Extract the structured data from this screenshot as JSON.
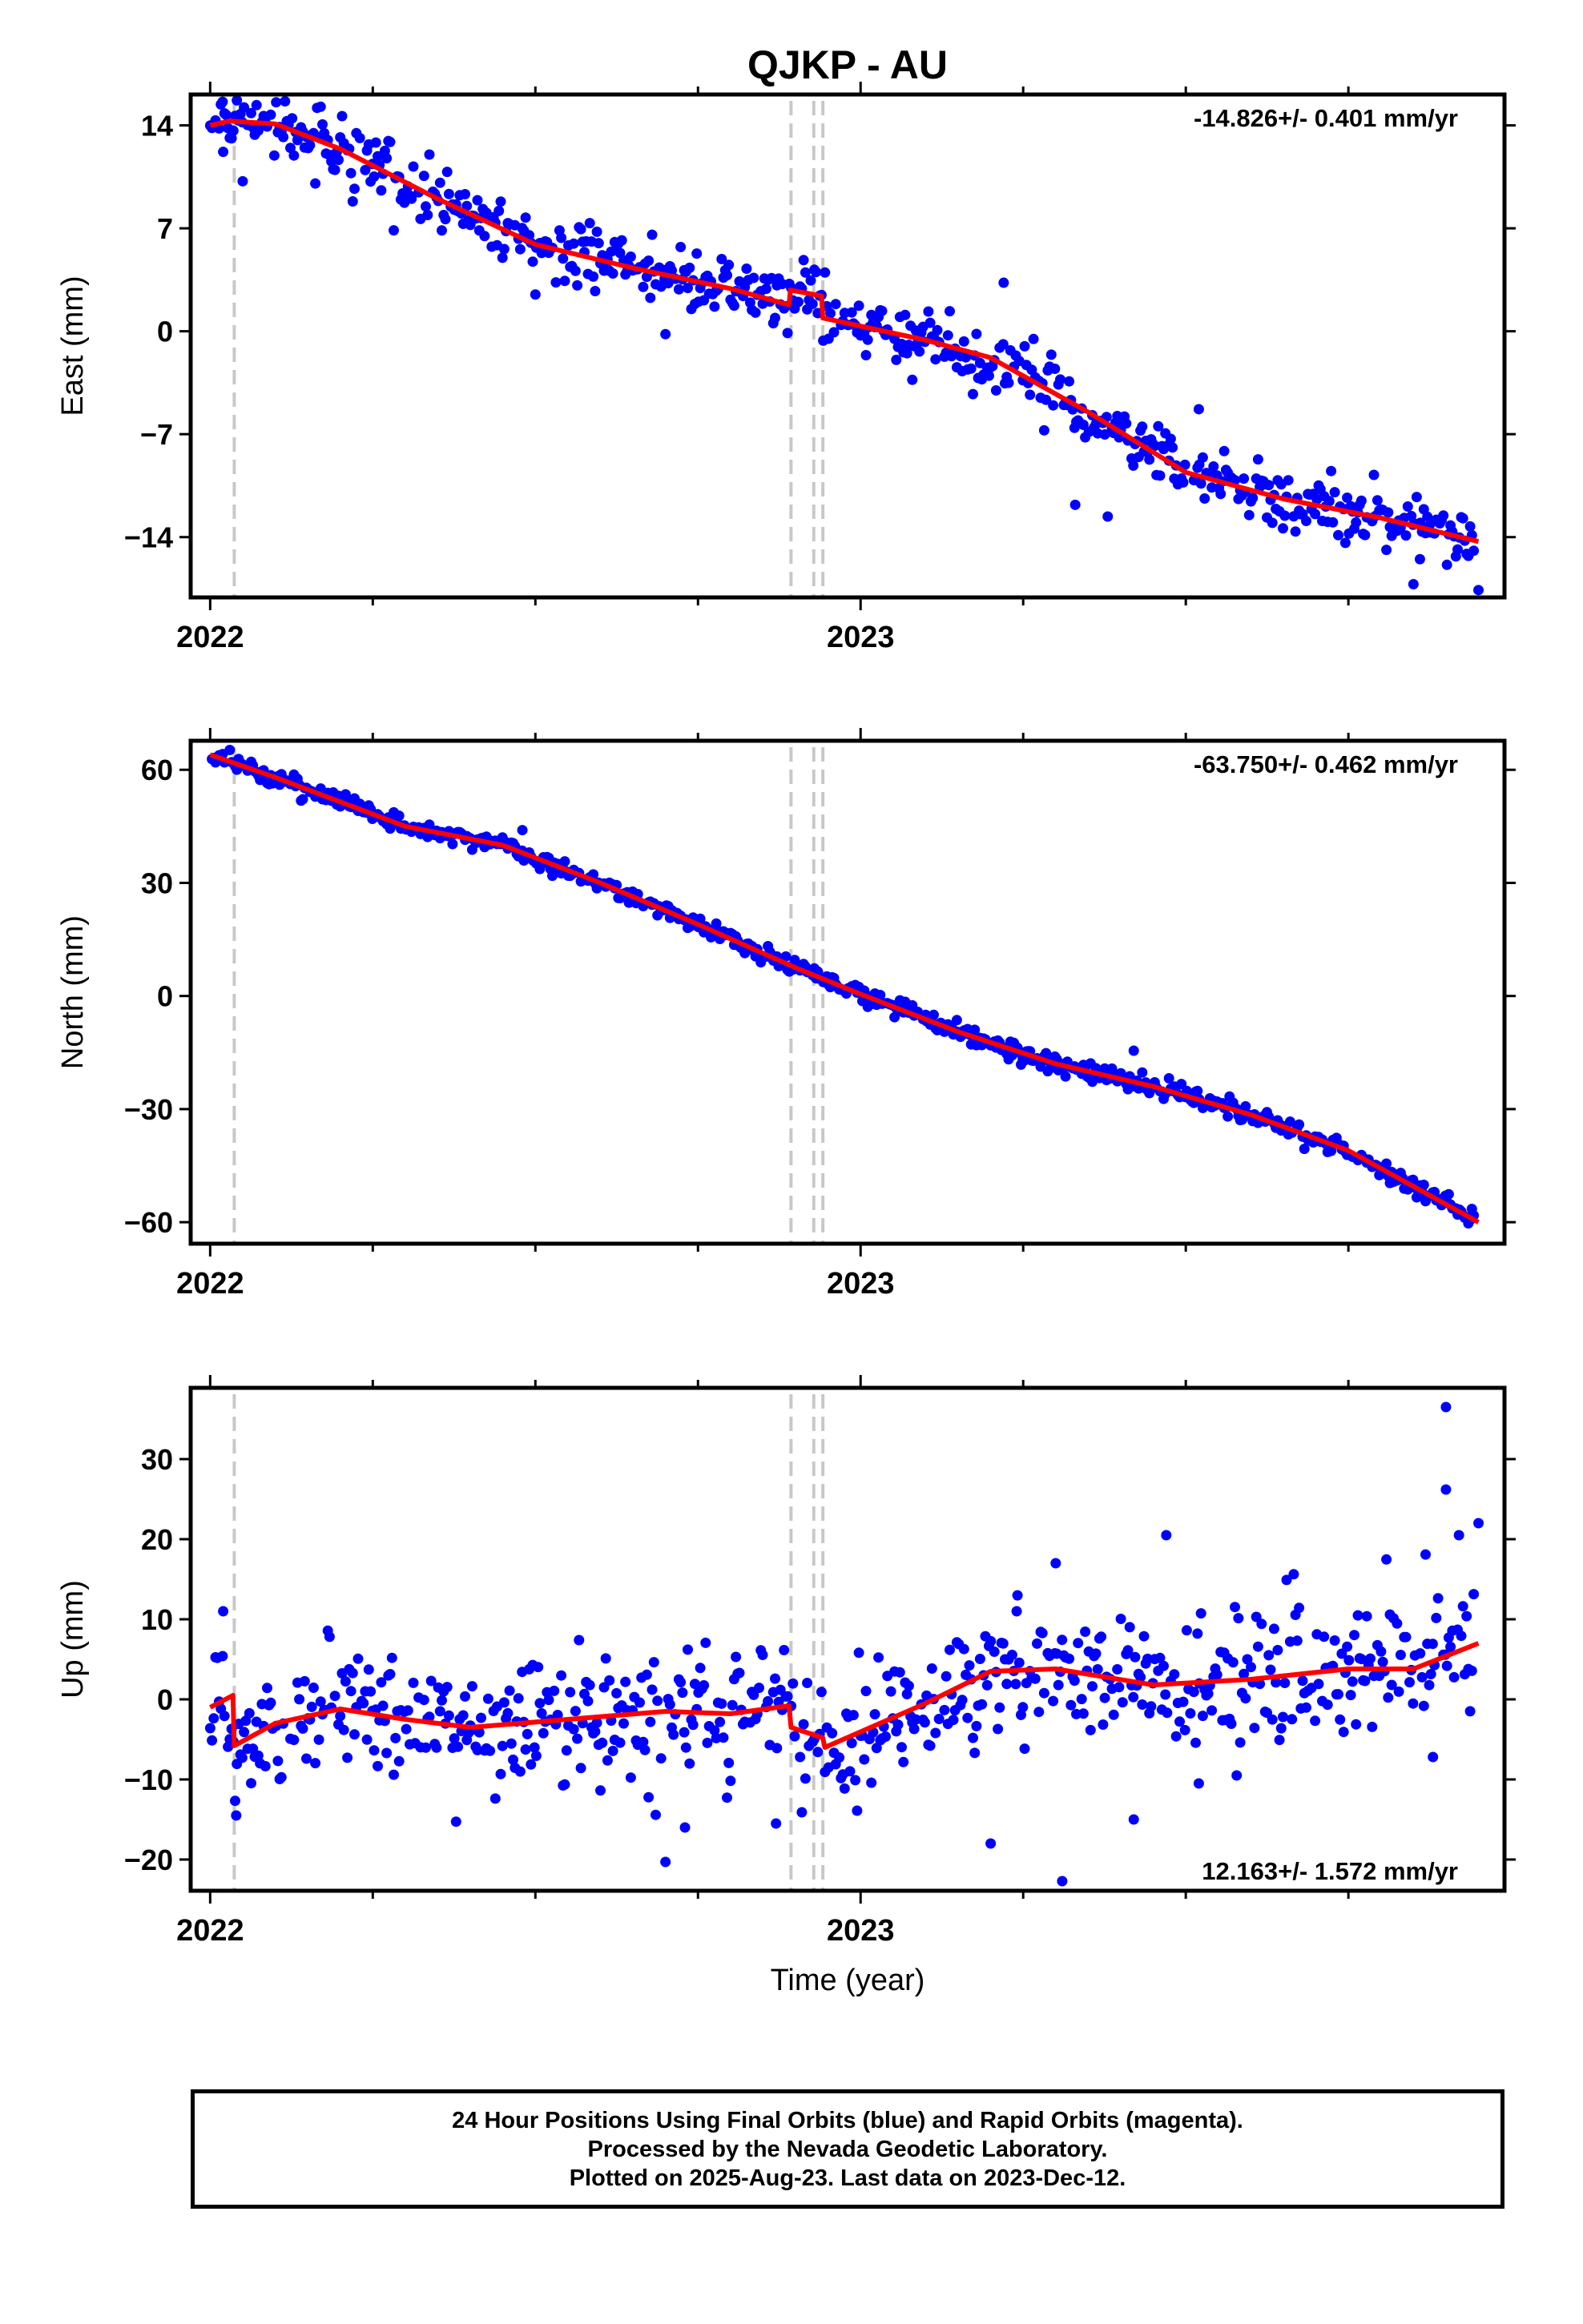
{
  "title": "QJKP - AU",
  "xlabel": "Time (year)",
  "colors": {
    "final_orbit_points": "#0000ff",
    "model_fit": "#ff0000",
    "steps": "#c8c8c8",
    "frame": "#000000"
  },
  "footer": {
    "line1": "24 Hour Positions Using Final Orbits (blue) and Rapid Orbits (magenta).",
    "line2": "Processed by the Nevada Geodetic Laboratory.",
    "line3": "Plotted on 2025-Aug-23. Last data on 2023-Dec-12."
  },
  "chart_data": [
    {
      "type": "scatter",
      "component": "east",
      "ylabel": "East (mm)",
      "rate_label": "-14.826+/- 0.401 mm/yr",
      "rate_label_position": "top-right",
      "xlim": [
        2021.97,
        2023.99
      ],
      "ylim": [
        -18.1,
        16.1
      ],
      "yticks": [
        14,
        7,
        0,
        -7,
        -14
      ],
      "xticks": [
        2022,
        2023
      ],
      "step_epochs": [
        2022.037,
        2022.893,
        2022.928,
        2022.942
      ],
      "model_fit_knots": {
        "x": [
          2022.0,
          2022.03,
          2022.1,
          2022.2,
          2022.35,
          2022.5,
          2022.65,
          2022.8,
          2022.89,
          2022.892,
          2022.94,
          2022.942,
          2023.1,
          2023.2,
          2023.35,
          2023.5,
          2023.65,
          2023.8,
          2023.95
        ],
        "y": [
          14.0,
          14.3,
          14.1,
          12.4,
          9.0,
          5.9,
          4.3,
          2.9,
          1.8,
          2.8,
          2.4,
          0.9,
          -0.6,
          -1.8,
          -5.5,
          -9.6,
          -11.4,
          -12.7,
          -14.3
        ]
      },
      "series": [
        {
          "name": "Final Orbits",
          "noise_scale": 1.05,
          "outliers": [
            [
              2022.02,
              12.2
            ],
            [
              2022.05,
              10.2
            ],
            [
              2022.5,
              2.5
            ],
            [
              2022.7,
              -0.2
            ],
            [
              2023.22,
              3.3
            ],
            [
              2023.52,
              -5.3
            ],
            [
              2023.33,
              -11.8
            ],
            [
              2023.38,
              -12.6
            ],
            [
              2023.85,
              -17.2
            ],
            [
              2023.95,
              -17.6
            ],
            [
              2023.86,
              -15.5
            ]
          ]
        }
      ]
    },
    {
      "type": "scatter",
      "component": "north",
      "ylabel": "North (mm)",
      "rate_label": "-63.750+/- 0.462 mm/yr",
      "rate_label_position": "top-right",
      "xlim": [
        2021.97,
        2023.99
      ],
      "ylim": [
        -65.7,
        67.7
      ],
      "yticks": [
        60,
        30,
        0,
        -30,
        -60
      ],
      "xticks": [
        2022,
        2023
      ],
      "step_epochs": [
        2022.037,
        2022.893,
        2022.928,
        2022.942
      ],
      "model_fit_knots": {
        "x": [
          2022.0,
          2022.1,
          2022.2,
          2022.3,
          2022.45,
          2022.6,
          2022.75,
          2022.9,
          2023.0,
          2023.15,
          2023.3,
          2023.45,
          2023.6,
          2023.75,
          2023.95
        ],
        "y": [
          64.0,
          58.0,
          51.5,
          45.0,
          40.0,
          30.0,
          19.0,
          7.5,
          0.5,
          -9.5,
          -18.0,
          -24.0,
          -31.5,
          -41.0,
          -60.0
        ]
      },
      "series": [
        {
          "name": "Final Orbits",
          "noise_scale": 1.2,
          "outliers": [
            [
              2022.48,
              44.0
            ],
            [
              2023.42,
              -14.5
            ],
            [
              2023.1,
              -5.0
            ]
          ]
        }
      ]
    },
    {
      "type": "scatter",
      "component": "up",
      "ylabel": "Up (mm)",
      "rate_label": "12.163+/- 1.572 mm/yr",
      "rate_label_position": "bottom-right",
      "xlim": [
        2021.97,
        2023.99
      ],
      "ylim": [
        -23.9,
        38.9
      ],
      "yticks": [
        30,
        20,
        10,
        0,
        -10,
        -20
      ],
      "xticks": [
        2022,
        2023
      ],
      "step_epochs": [
        2022.037,
        2022.893,
        2022.928,
        2022.942
      ],
      "model_fit_knots": {
        "x": [
          2022.0,
          2022.035,
          2022.037,
          2022.1,
          2022.2,
          2022.3,
          2022.4,
          2022.55,
          2022.7,
          2022.8,
          2022.89,
          2022.893,
          2022.942,
          2022.945,
          2023.1,
          2023.2,
          2023.3,
          2023.45,
          2023.6,
          2023.75,
          2023.85,
          2023.95
        ],
        "y": [
          -1.0,
          0.5,
          -5.8,
          -3.0,
          -1.2,
          -2.5,
          -3.5,
          -2.5,
          -1.5,
          -1.8,
          -0.8,
          -3.5,
          -4.8,
          -6.0,
          -0.5,
          3.5,
          3.8,
          1.8,
          2.5,
          3.8,
          3.8,
          7.0
        ]
      },
      "series": [
        {
          "name": "Final Orbits",
          "noise_scale": 4.2,
          "outliers": [
            [
              2022.02,
              11.0
            ],
            [
              2022.04,
              -14.5
            ],
            [
              2022.7,
              -20.3
            ],
            [
              2022.73,
              -16.0
            ],
            [
              2022.87,
              -15.5
            ],
            [
              2023.2,
              -18.0
            ],
            [
              2023.31,
              -22.7
            ],
            [
              2023.47,
              20.5
            ],
            [
              2023.52,
              -10.5
            ],
            [
              2023.42,
              -15.0
            ],
            [
              2023.9,
              36.5
            ],
            [
              2023.9,
              26.2
            ],
            [
              2023.88,
              -7.2
            ],
            [
              2023.95,
              22.0
            ],
            [
              2023.92,
              20.5
            ],
            [
              2023.3,
              17.0
            ],
            [
              2023.24,
              11.0
            ]
          ]
        }
      ]
    }
  ]
}
